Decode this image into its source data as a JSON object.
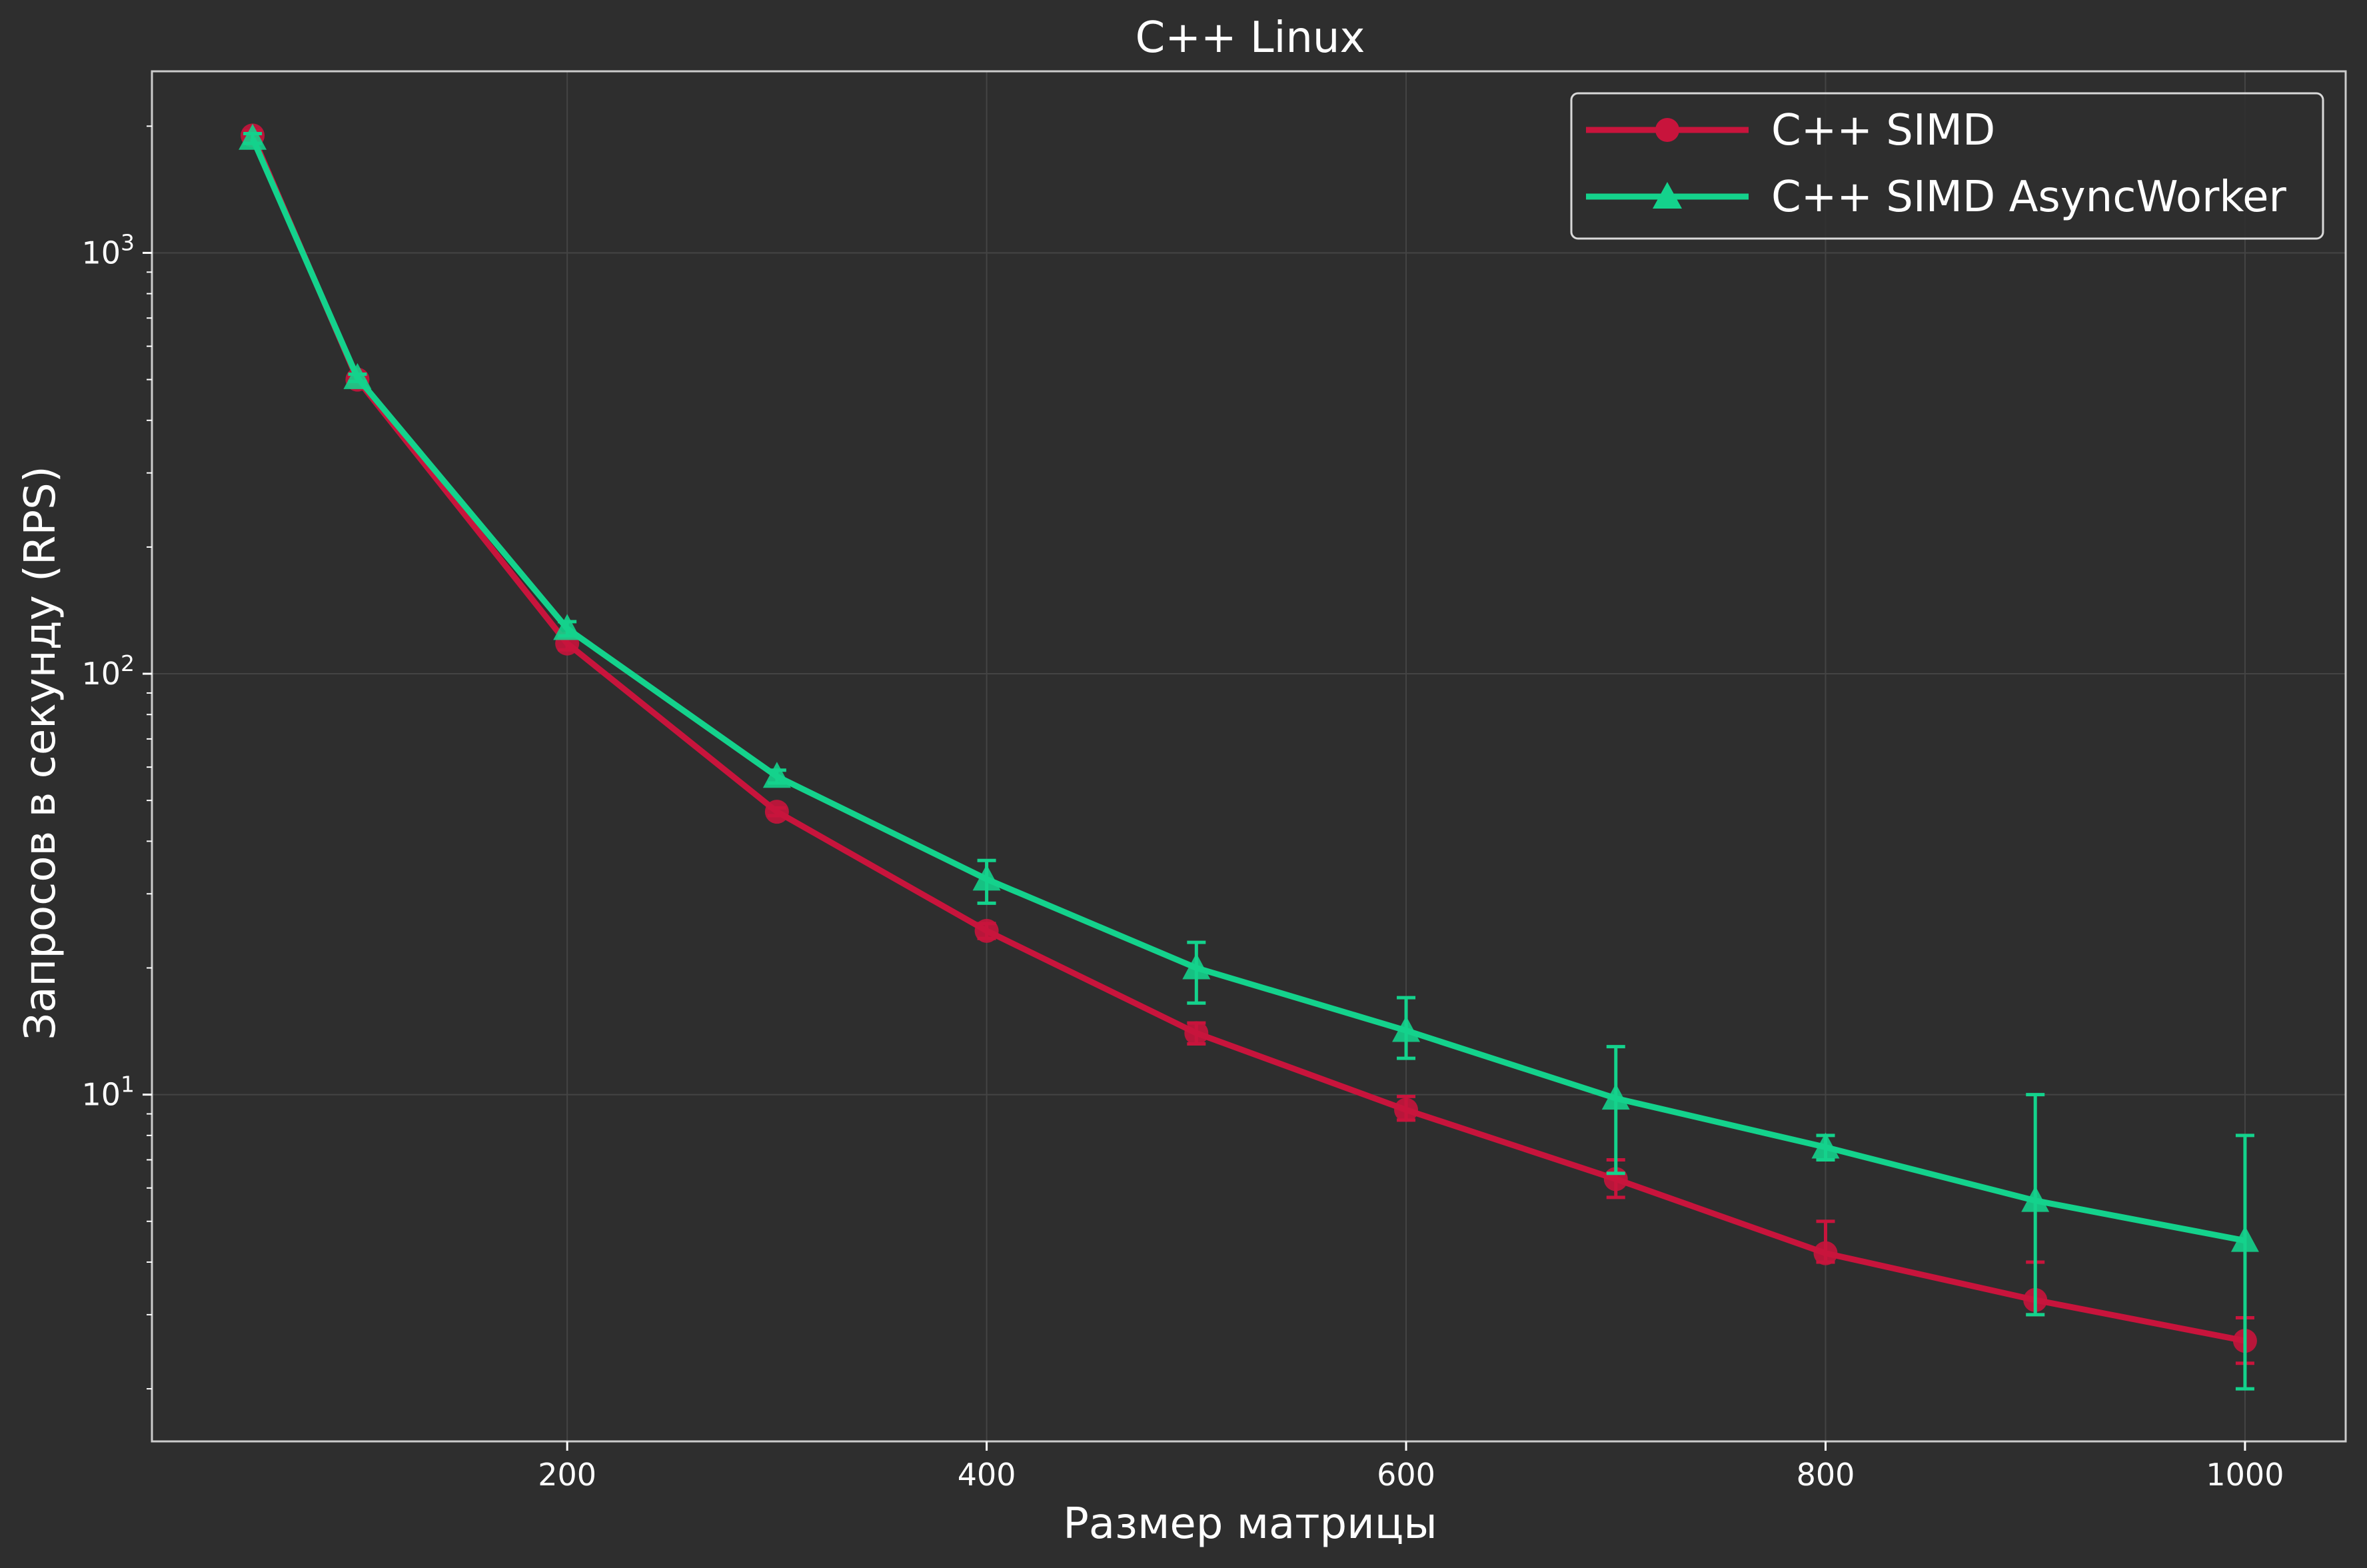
{
  "colors": {
    "background": "#2e2e2e",
    "axes_edge": "#cccccc",
    "grid": "#444444",
    "text": "#ffffff",
    "legend_bg": "#2e2e2e",
    "legend_edge": "#d9d9d9"
  },
  "chart_data": {
    "type": "line",
    "title": "C++ Linux",
    "xlabel": "Размер матрицы",
    "ylabel": "Запросов в секунду (RPS)",
    "xlim": [
      2,
      1048
    ],
    "ylim": [
      1.5,
      2700
    ],
    "yscale": "log",
    "grid": true,
    "legend_position": "top-right",
    "x_ticks": [
      200,
      400,
      600,
      800,
      1000
    ],
    "x_tick_labels": [
      "200",
      "400",
      "600",
      "800",
      "1000"
    ],
    "y_ticks": [
      10,
      100,
      1000
    ],
    "y_tick_labels": [
      {
        "base": "10",
        "exp": "1"
      },
      {
        "base": "10",
        "exp": "2"
      },
      {
        "base": "10",
        "exp": "3"
      }
    ],
    "y_minor_ticks": [
      2,
      3,
      4,
      5,
      6,
      7,
      8,
      9,
      20,
      30,
      40,
      50,
      60,
      70,
      80,
      90,
      200,
      300,
      400,
      500,
      600,
      700,
      800,
      900,
      2000
    ],
    "x": [
      50,
      100,
      200,
      300,
      400,
      500,
      600,
      700,
      800,
      900,
      1000
    ],
    "series": [
      {
        "name": "C++ SIMD",
        "color": "#c8143c",
        "marker": "circle",
        "values": [
          1900,
          500,
          118,
          47,
          24.5,
          14,
          9.2,
          6.3,
          4.2,
          3.25,
          2.6
        ],
        "err_low": [
          1850,
          490,
          114,
          46,
          23.5,
          13.2,
          8.7,
          5.7,
          4.0,
          3.0,
          2.3
        ],
        "err_high": [
          1950,
          510,
          122,
          48,
          25.5,
          14.8,
          9.9,
          7.0,
          5.0,
          4.0,
          2.95
        ]
      },
      {
        "name": "C++ SIMD AsyncWorker",
        "color": "#14d28c",
        "marker": "triangle",
        "values": [
          1870,
          505,
          128,
          57,
          32.5,
          20,
          14.2,
          9.8,
          7.5,
          5.6,
          4.5
        ],
        "err_low": [
          1820,
          495,
          123,
          55,
          28.5,
          16.5,
          12.2,
          6.5,
          7.0,
          3.0,
          2.0
        ],
        "err_high": [
          1920,
          515,
          133,
          59,
          36,
          23,
          17,
          13,
          8.0,
          10,
          8.0
        ]
      }
    ]
  }
}
